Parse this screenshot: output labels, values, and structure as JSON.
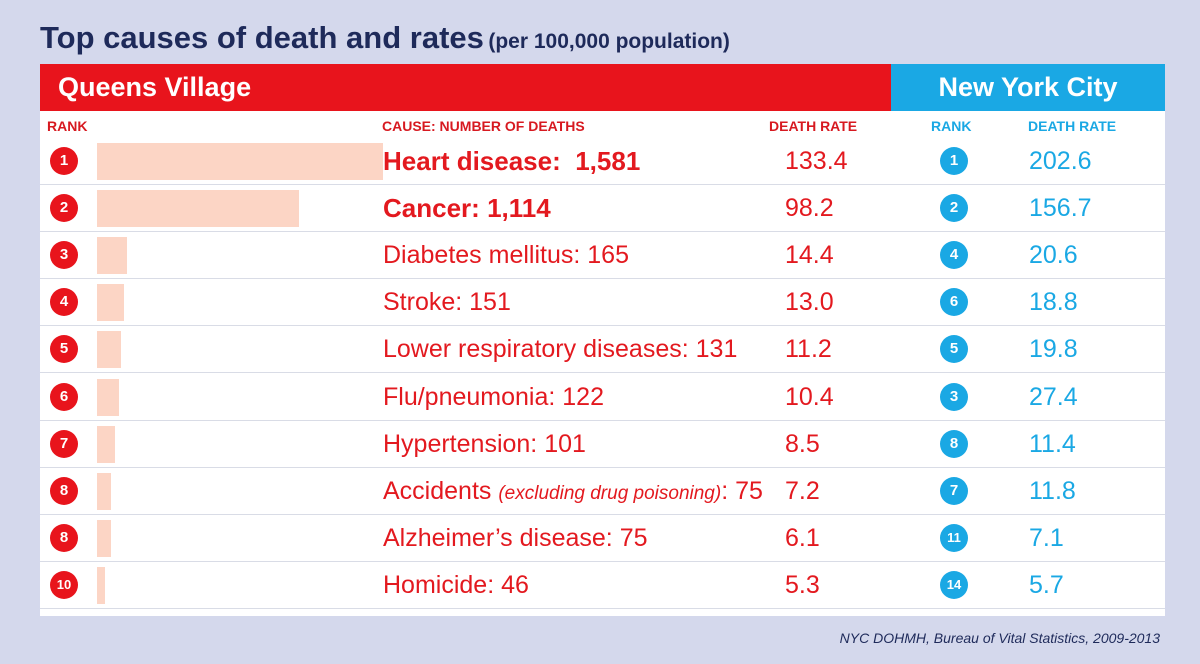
{
  "title": "Top causes of death and rates",
  "subtitle": "(per 100,000 population)",
  "queens_label": "Queens Village",
  "nyc_label": "New York City",
  "headers": {
    "rank": "RANK",
    "cause": "CAUSE: NUMBER OF DEATHS",
    "death_rate": "DEATH RATE",
    "nyc_rank": "RANK",
    "nyc_death_rate": "DEATH RATE"
  },
  "source": "NYC DOHMH, Bureau of Vital Statistics, 2009-2013",
  "colors": {
    "red": "#e8141c",
    "blue": "#1aa8e4",
    "bar": "#fcd5c5",
    "title": "#1e2a5a"
  },
  "chart_data": {
    "type": "table",
    "title": "Top causes of death and rates",
    "subtitle": "(per 100,000 population)",
    "rows": [
      {
        "rank": "1",
        "cause": "Heart disease:",
        "deaths": 1581,
        "deaths_label": "1,581",
        "note": "",
        "rate": "133.4",
        "nyc_rank": "1",
        "nyc_rate": "202.6"
      },
      {
        "rank": "2",
        "cause": "Cancer:",
        "deaths": 1114,
        "deaths_label": "1,114",
        "note": "",
        "rate": "98.2",
        "nyc_rank": "2",
        "nyc_rate": "156.7"
      },
      {
        "rank": "3",
        "cause": "Diabetes mellitus:",
        "deaths": 165,
        "deaths_label": "165",
        "note": "",
        "rate": "14.4",
        "nyc_rank": "4",
        "nyc_rate": "20.6"
      },
      {
        "rank": "4",
        "cause": "Stroke:",
        "deaths": 151,
        "deaths_label": "151",
        "note": "",
        "rate": "13.0",
        "nyc_rank": "6",
        "nyc_rate": "18.8"
      },
      {
        "rank": "5",
        "cause": "Lower respiratory diseases:",
        "deaths": 131,
        "deaths_label": "131",
        "note": "",
        "rate": "11.2",
        "nyc_rank": "5",
        "nyc_rate": "19.8"
      },
      {
        "rank": "6",
        "cause": "Flu/pneumonia:",
        "deaths": 122,
        "deaths_label": "122",
        "note": "",
        "rate": "10.4",
        "nyc_rank": "3",
        "nyc_rate": "27.4"
      },
      {
        "rank": "7",
        "cause": "Hypertension:",
        "deaths": 101,
        "deaths_label": "101",
        "note": "",
        "rate": "8.5",
        "nyc_rank": "8",
        "nyc_rate": "11.4"
      },
      {
        "rank": "8",
        "cause": "Accidents",
        "deaths": 75,
        "deaths_label": "75",
        "note": "(excluding drug poisoning)",
        "rate": "7.2",
        "nyc_rank": "7",
        "nyc_rate": "11.8"
      },
      {
        "rank": "8",
        "cause": "Alzheimer’s disease:",
        "deaths": 75,
        "deaths_label": "75",
        "note": "",
        "rate": "6.1",
        "nyc_rank": "11",
        "nyc_rate": "7.1"
      },
      {
        "rank": "10",
        "cause": "Homicide:",
        "deaths": 46,
        "deaths_label": "46",
        "note": "",
        "rate": "5.3",
        "nyc_rank": "14",
        "nyc_rate": "5.7"
      }
    ]
  }
}
